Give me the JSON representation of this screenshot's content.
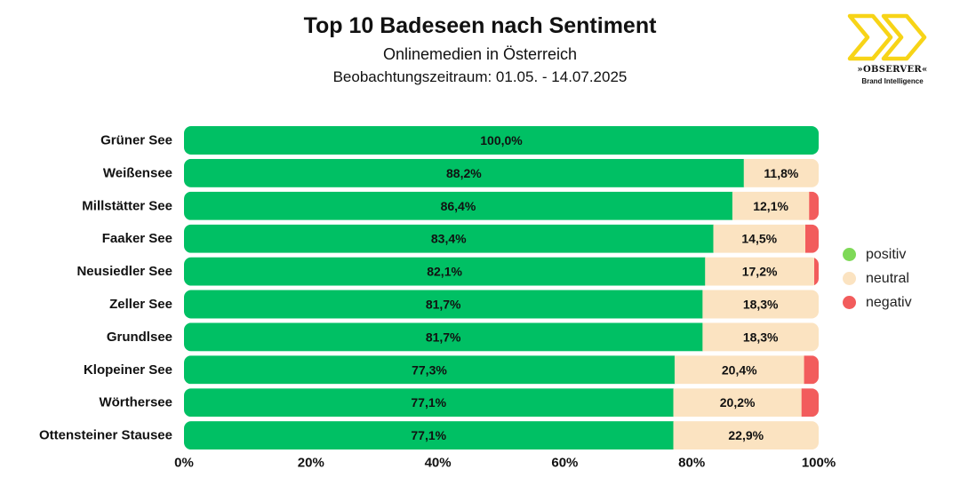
{
  "header": {
    "title": "Top 10 Badeseen nach Sentiment",
    "subtitle": "Onlinemedien in Österreich",
    "period": "Beobachtungszeitraum: 01.05. - 14.07.2025"
  },
  "logo": {
    "name": "»OBSERVER«",
    "tagline": "Brand Intelligence",
    "icon": "double-chevron-icon",
    "color": "#f7d417"
  },
  "colors": {
    "positiv": "#00c064",
    "neutral": "#fbe3c1",
    "negativ": "#f25c5c",
    "legend_positiv": "#7ed957"
  },
  "legend": [
    {
      "key": "positiv",
      "label": "positiv"
    },
    {
      "key": "neutral",
      "label": "neutral"
    },
    {
      "key": "negativ",
      "label": "negativ"
    }
  ],
  "chart_data": {
    "type": "bar",
    "orientation": "horizontal",
    "stacked": true,
    "title": "Top 10 Badeseen nach Sentiment",
    "xlabel": "",
    "ylabel": "",
    "xlim": [
      0,
      100
    ],
    "xticks": [
      "0%",
      "20%",
      "40%",
      "60%",
      "80%",
      "100%"
    ],
    "categories": [
      "Grüner See",
      "Weißensee",
      "Millstätter See",
      "Faaker See",
      "Neusiedler See",
      "Zeller See",
      "Grundlsee",
      "Klopeiner See",
      "Wörthersee",
      "Ottensteiner Stausee"
    ],
    "series": [
      {
        "name": "positiv",
        "values": [
          100.0,
          88.2,
          86.4,
          83.4,
          82.1,
          81.7,
          81.7,
          77.3,
          77.1,
          77.1
        ],
        "labels": [
          "100,0%",
          "88,2%",
          "86,4%",
          "83,4%",
          "82,1%",
          "81,7%",
          "81,7%",
          "77,3%",
          "77,1%",
          "77,1%"
        ]
      },
      {
        "name": "neutral",
        "values": [
          0,
          11.8,
          12.1,
          14.5,
          17.2,
          18.3,
          18.3,
          20.4,
          20.2,
          22.9
        ],
        "labels": [
          "",
          "11,8%",
          "12,1%",
          "14,5%",
          "17,2%",
          "18,3%",
          "18,3%",
          "20,4%",
          "20,2%",
          "22,9%"
        ]
      },
      {
        "name": "negativ",
        "values": [
          0,
          0,
          1.5,
          2.1,
          0.7,
          0,
          0,
          2.3,
          2.7,
          0
        ],
        "labels": [
          "",
          "",
          "",
          "",
          "",
          "",
          "",
          "",
          "",
          ""
        ]
      }
    ],
    "legend_position": "right"
  }
}
